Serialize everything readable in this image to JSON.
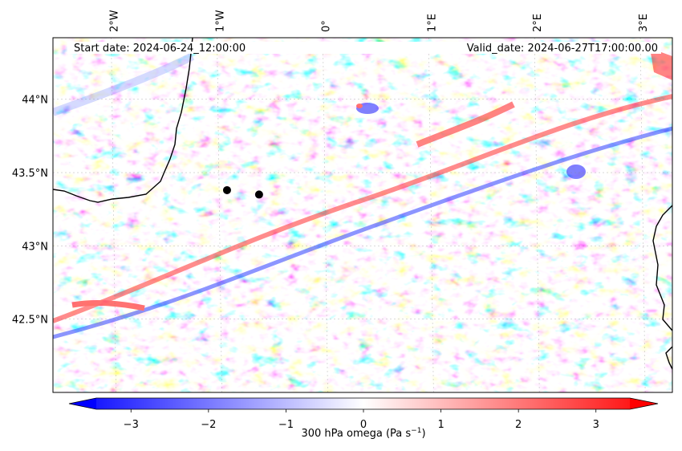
{
  "map": {
    "start_date": "Start date: 2024-06-24_12:00:00",
    "valid_date": "Valid_date: 2024-06-27T17:00:00.00",
    "lon_labels": [
      "2°W",
      "1°W",
      "0°",
      "1°E",
      "2°E",
      "3°E"
    ],
    "lat_labels": [
      "44°N",
      "43.5°N",
      "43°N",
      "42.5°N"
    ],
    "markers": [
      {
        "lon": -0.92,
        "lat": 43.38
      },
      {
        "lon": -0.62,
        "lat": 43.35
      }
    ],
    "extent": {
      "lon_min": -2.55,
      "lon_max": 3.25,
      "lat_min": 42.0,
      "lat_max": 44.42
    }
  },
  "colorbar": {
    "label": "300 hPa omega (Pa s",
    "label_sup": "−1",
    "label_end": ")",
    "ticks": [
      "−3",
      "−2",
      "−1",
      "0",
      "1",
      "2",
      "3"
    ],
    "tick_values": [
      -3,
      -2,
      -1,
      0,
      1,
      2,
      3
    ],
    "vmin": -3.8,
    "vmax": 3.8,
    "colormap": "bwr",
    "color_min": "#0000ff",
    "color_mid": "#ffffff",
    "color_max": "#ff0000"
  }
}
